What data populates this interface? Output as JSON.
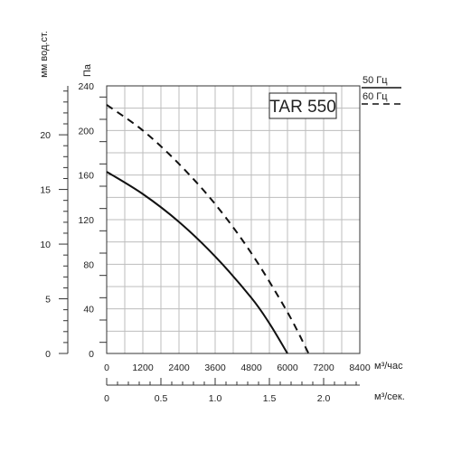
{
  "chart_data": {
    "type": "line",
    "title": "TAR 550",
    "y_left_label": "мм вод.ст.",
    "y_right_label": "Па",
    "x_top_label": "м³/час",
    "x_bottom_label": "м³/сек.",
    "xlim": [
      0,
      8400
    ],
    "ylim": [
      0,
      240
    ],
    "x_top_ticks": [
      "0",
      "1200",
      "2400",
      "3600",
      "4800",
      "6000",
      "7200",
      "8400"
    ],
    "y_pa_ticks": [
      "0",
      "40",
      "80",
      "120",
      "160",
      "200",
      "240"
    ],
    "y_mm_ticks": [
      "0",
      "5",
      "10",
      "15",
      "20"
    ],
    "x_sec_ticks": [
      "0",
      "0.5",
      "1.0",
      "1.5",
      "2.0"
    ],
    "grid": true,
    "legend_position": "top-right",
    "series": [
      {
        "name": "50 Гц",
        "style": "solid",
        "color": "#111111",
        "x": [
          0,
          1200,
          2400,
          3600,
          4800,
          5400,
          6000
        ],
        "y": [
          163,
          143,
          118,
          87,
          50,
          27,
          0
        ]
      },
      {
        "name": "60 Гц",
        "style": "dashed",
        "color": "#111111",
        "x": [
          0,
          1200,
          2400,
          3600,
          4800,
          6000,
          6700
        ],
        "y": [
          223,
          200,
          170,
          134,
          90,
          37,
          0
        ]
      }
    ]
  }
}
